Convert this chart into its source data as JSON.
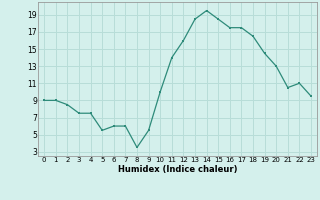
{
  "x": [
    0,
    1,
    2,
    3,
    4,
    5,
    6,
    7,
    8,
    9,
    10,
    11,
    12,
    13,
    14,
    15,
    16,
    17,
    18,
    19,
    20,
    21,
    22,
    23
  ],
  "y": [
    9,
    9,
    8.5,
    7.5,
    7.5,
    5.5,
    6,
    6,
    3.5,
    5.5,
    10,
    14,
    16,
    18.5,
    19.5,
    18.5,
    17.5,
    17.5,
    16.5,
    14.5,
    13,
    10.5,
    11,
    9.5
  ],
  "line_color": "#2e8b7a",
  "marker_color": "#2e8b7a",
  "bg_color": "#d4f0ec",
  "grid_color": "#b8ddd8",
  "xlabel": "Humidex (Indice chaleur)",
  "yticks": [
    3,
    5,
    7,
    9,
    11,
    13,
    15,
    17,
    19
  ],
  "ylim": [
    2.5,
    20.5
  ],
  "xlim": [
    -0.5,
    23.5
  ],
  "xtick_fontsize": 5.0,
  "ytick_fontsize": 5.5,
  "xlabel_fontsize": 6.0
}
